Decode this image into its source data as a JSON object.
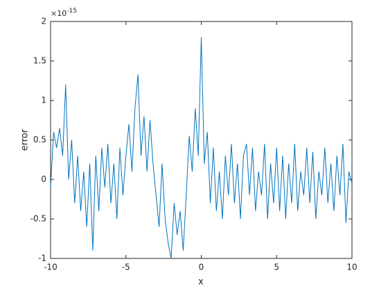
{
  "chart_data": {
    "type": "line",
    "xlabel": "x",
    "ylabel": "error",
    "y_multiplier_base": "×10",
    "y_multiplier_exponent": "-15",
    "xlim": [
      -10,
      10
    ],
    "xticks": [
      -10,
      -5,
      0,
      5,
      10
    ],
    "ylim": [
      -1,
      2
    ],
    "yticks": [
      -1,
      -0.5,
      0,
      0.5,
      1,
      1.5,
      2
    ],
    "grid": false,
    "x": [
      -10,
      -9.8,
      -9.6,
      -9.4,
      -9.2,
      -9,
      -8.8,
      -8.6,
      -8.4,
      -8.2,
      -8,
      -7.8,
      -7.6,
      -7.4,
      -7.2,
      -7,
      -6.8,
      -6.6,
      -6.4,
      -6.2,
      -6,
      -5.8,
      -5.6,
      -5.4,
      -5.2,
      -5,
      -4.8,
      -4.6,
      -4.4,
      -4.2,
      -4,
      -3.8,
      -3.6,
      -3.4,
      -3.2,
      -3,
      -2.8,
      -2.6,
      -2.4,
      -2.2,
      -2,
      -1.8,
      -1.6,
      -1.4,
      -1.2,
      -1,
      -0.8,
      -0.6,
      -0.4,
      -0.2,
      0,
      0.2,
      0.4,
      0.6,
      0.8,
      1,
      1.2,
      1.4,
      1.6,
      1.8,
      2,
      2.2,
      2.4,
      2.6,
      2.8,
      3,
      3.2,
      3.4,
      3.6,
      3.8,
      4,
      4.2,
      4.4,
      4.6,
      4.8,
      5,
      5.2,
      5.4,
      5.6,
      5.8,
      6,
      6.2,
      6.4,
      6.6,
      6.8,
      7,
      7.2,
      7.4,
      7.6,
      7.8,
      8,
      8.2,
      8.4,
      8.6,
      8.8,
      9,
      9.2,
      9.4,
      9.6,
      9.8,
      10
    ],
    "series": [
      {
        "color": "#0072bd",
        "values": [
          -0.1,
          0.6,
          0.4,
          0.65,
          0.3,
          1.2,
          0,
          0.5,
          -0.3,
          0.3,
          -0.4,
          0.1,
          -0.6,
          0.2,
          -0.9,
          0.3,
          -0.4,
          0.4,
          -0.1,
          0.45,
          -0.3,
          0.2,
          -0.5,
          0.4,
          -0.2,
          0.3,
          0.7,
          0.1,
          0.9,
          1.33,
          0.3,
          0.8,
          0.1,
          0.75,
          0.2,
          -0.2,
          -0.6,
          0.2,
          -0.5,
          -0.8,
          -1,
          -0.3,
          -0.7,
          -0.4,
          -0.9,
          -0.2,
          0.55,
          0.1,
          0.9,
          0.3,
          1.8,
          0.2,
          0.6,
          -0.3,
          0.4,
          -0.4,
          0.1,
          -0.5,
          0.3,
          -0.2,
          0.45,
          -0.3,
          0.2,
          -0.5,
          0.3,
          0.45,
          -0.2,
          0.4,
          -0.4,
          0.1,
          -0.2,
          0.45,
          -0.5,
          0.2,
          -0.3,
          0.4,
          -0.4,
          0.3,
          -0.5,
          0.2,
          -0.3,
          0.45,
          -0.4,
          0.1,
          -0.2,
          0.4,
          -0.3,
          0.35,
          -0.5,
          0.1,
          -0.2,
          0.4,
          -0.3,
          0.2,
          -0.4,
          0.3,
          -0.2,
          0.45,
          -0.55,
          0.1,
          -0.05
        ]
      }
    ]
  }
}
